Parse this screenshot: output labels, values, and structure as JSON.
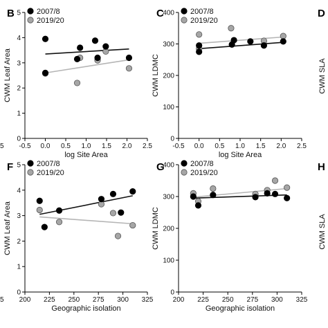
{
  "chart_data": [
    {
      "type": "scatter",
      "panel_letter": "B",
      "xlabel": "log Site Area",
      "ylabel": "CWM Leaf  Area",
      "xlim": [
        -0.5,
        2.5
      ],
      "ylim": [
        0,
        5
      ],
      "xticks": [
        "-0.5",
        "0.0",
        "0.5",
        "1.0",
        "1.5",
        "2.0",
        "2.5"
      ],
      "yticks": [
        "0",
        "1",
        "2",
        "3",
        "4",
        "5"
      ],
      "legend_position": "top-left",
      "series": [
        {
          "name": "2007/8",
          "color": "#000000",
          "x": [
            0.0,
            0.0,
            0.78,
            0.85,
            1.22,
            1.28,
            1.48,
            2.05
          ],
          "y": [
            3.95,
            2.6,
            3.15,
            3.6,
            3.88,
            3.2,
            3.65,
            3.2
          ],
          "fit": [
            [
              0.0,
              3.35
            ],
            [
              2.05,
              3.55
            ]
          ]
        },
        {
          "name": "2019/20",
          "color": "#a6a6a6",
          "x": [
            0.0,
            0.78,
            0.85,
            1.28,
            1.48,
            2.05
          ],
          "y": [
            2.58,
            2.2,
            3.2,
            3.1,
            3.45,
            2.78
          ],
          "fit": [
            [
              0.0,
              2.6
            ],
            [
              2.05,
              3.12
            ]
          ]
        }
      ]
    },
    {
      "type": "scatter",
      "panel_letter": "C",
      "xlabel": "log Site Area",
      "ylabel": "CWM LDMC",
      "xlim": [
        -0.5,
        2.5
      ],
      "ylim": [
        0,
        400
      ],
      "xticks": [
        "-0.5",
        "0.0",
        "0.5",
        "1.0",
        "1.5",
        "2.0",
        "2.5"
      ],
      "yticks": [
        "0",
        "100",
        "200",
        "300",
        "400"
      ],
      "legend_position": "top-left",
      "series": [
        {
          "name": "2007/8",
          "color": "#000000",
          "x": [
            0.0,
            0.0,
            0.8,
            0.85,
            1.25,
            1.58,
            2.05
          ],
          "y": [
            275,
            295,
            298,
            312,
            308,
            295,
            308
          ],
          "fit": [
            [
              0.0,
              285
            ],
            [
              2.05,
              305
            ]
          ]
        },
        {
          "name": "2019/20",
          "color": "#a6a6a6",
          "x": [
            0.0,
            0.0,
            0.78,
            1.58,
            2.05
          ],
          "y": [
            330,
            285,
            350,
            310,
            325
          ],
          "fit": [
            [
              0.0,
              302
            ],
            [
              2.05,
              322
            ]
          ]
        }
      ]
    },
    {
      "type": "scatter",
      "panel_letter": "D",
      "ylabel": "CWM SLA",
      "partial": true
    },
    {
      "type": "scatter",
      "panel_letter": "F",
      "xlabel": "Geographic isolation",
      "ylabel": "CWM Leaf  Area",
      "xlim": [
        200,
        325
      ],
      "ylim": [
        0,
        5
      ],
      "xticks": [
        "200",
        "225",
        "250",
        "275",
        "300",
        "325"
      ],
      "yticks": [
        "0",
        "1",
        "2",
        "3",
        "4",
        "5"
      ],
      "legend_position": "top-left",
      "series": [
        {
          "name": "2007/8",
          "color": "#000000",
          "x": [
            215,
            220,
            235,
            278,
            290,
            298,
            310
          ],
          "y": [
            3.58,
            2.55,
            3.2,
            3.65,
            3.85,
            3.12,
            3.95
          ],
          "fit": [
            [
              215,
              3.05
            ],
            [
              310,
              3.78
            ]
          ]
        },
        {
          "name": "2019/20",
          "color": "#a6a6a6",
          "x": [
            215,
            235,
            278,
            290,
            295,
            310
          ],
          "y": [
            3.22,
            2.75,
            3.45,
            3.1,
            2.2,
            2.62
          ],
          "fit": [
            [
              215,
              2.95
            ],
            [
              310,
              2.68
            ]
          ]
        }
      ]
    },
    {
      "type": "scatter",
      "panel_letter": "G",
      "xlabel": "Geographic isolation",
      "ylabel": "CWM LDMC",
      "xlim": [
        200,
        325
      ],
      "ylim": [
        0,
        400
      ],
      "xticks": [
        "200",
        "225",
        "250",
        "275",
        "300",
        "325"
      ],
      "yticks": [
        "0",
        "100",
        "200",
        "300",
        "400"
      ],
      "legend_position": "top-left",
      "series": [
        {
          "name": "2007/8",
          "color": "#000000",
          "x": [
            215,
            220,
            235,
            278,
            290,
            298,
            310
          ],
          "y": [
            300,
            272,
            305,
            298,
            310,
            308,
            295
          ],
          "fit": [
            [
              215,
              295
            ],
            [
              310,
              305
            ]
          ]
        },
        {
          "name": "2019/20",
          "color": "#a6a6a6",
          "x": [
            215,
            220,
            235,
            278,
            290,
            298,
            310
          ],
          "y": [
            310,
            285,
            325,
            308,
            320,
            350,
            328
          ],
          "fit": [
            [
              215,
              298
            ],
            [
              310,
              325
            ]
          ]
        }
      ]
    },
    {
      "type": "scatter",
      "panel_letter": "H",
      "ylabel": "CWM SLA",
      "partial": true
    },
    {
      "type": "scatter",
      "panel_letter": "",
      "partial": true,
      "xticks": [
        "5"
      ],
      "note": "cropped tick labels from panels at left edge"
    }
  ]
}
